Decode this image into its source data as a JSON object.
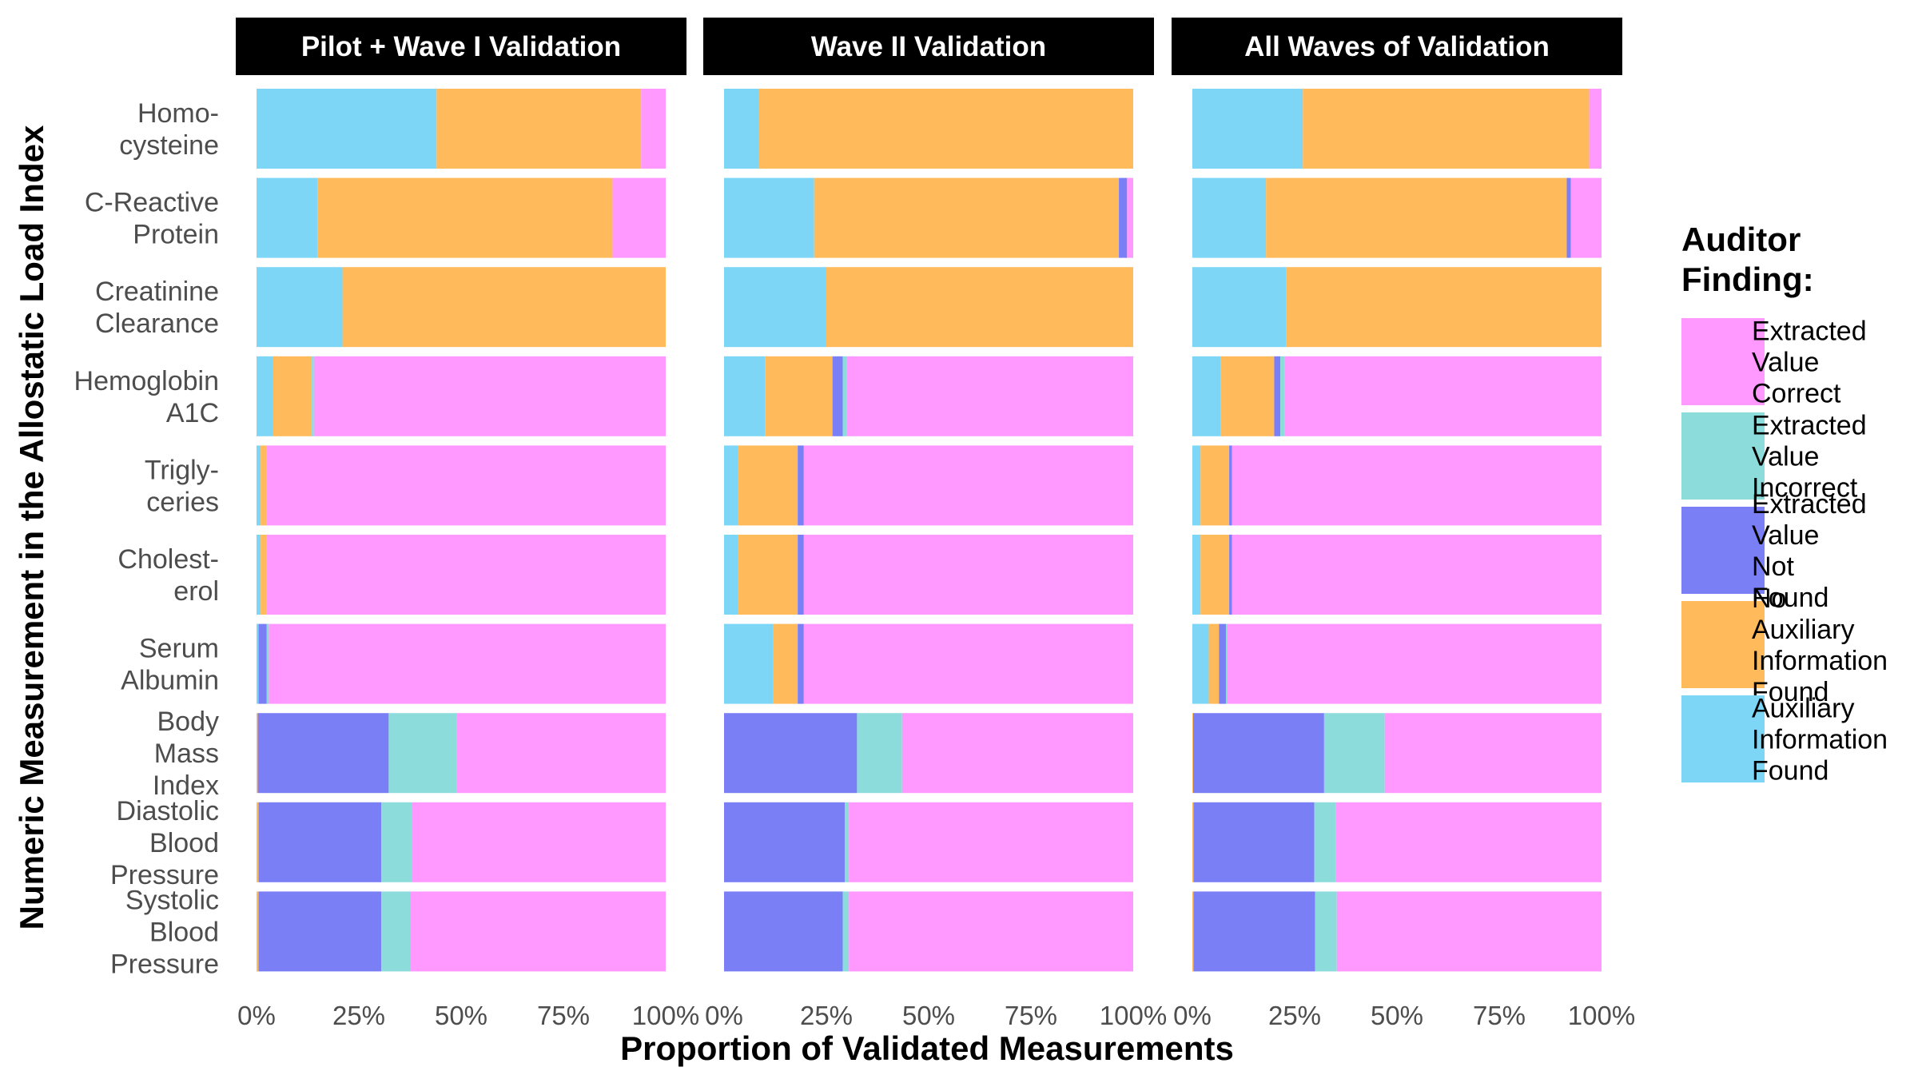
{
  "chart_data": {
    "type": "bar",
    "stacked": true,
    "orientation": "horizontal",
    "xlabel": "Proportion of Validated Measurements",
    "ylabel": "Numeric Measurement in the Allostatic Load Index",
    "xlim": [
      0,
      1
    ],
    "x_ticks": [
      "0%",
      "25%",
      "50%",
      "75%",
      "100%"
    ],
    "legend": {
      "title": [
        "Auditor",
        "Finding:"
      ],
      "position": "right",
      "entries": [
        {
          "key": "correct",
          "label": [
            "Extracted",
            "Value",
            "Correct"
          ],
          "color": "#FF99FF"
        },
        {
          "key": "incorrect",
          "label": [
            "Extracted",
            "Value",
            "Incorrect"
          ],
          "color": "#8DDCDC"
        },
        {
          "key": "not_found",
          "label": [
            "Extracted",
            "Value",
            "Not",
            "Found"
          ],
          "color": "#7B7FF6"
        },
        {
          "key": "no_aux",
          "label": [
            "No",
            "Auxiliary",
            "Information",
            "Found"
          ],
          "color": "#FFBA5C"
        },
        {
          "key": "aux",
          "label": [
            "Auxiliary",
            "Information",
            "Found"
          ],
          "color": "#7ED6F7"
        }
      ]
    },
    "stack_order": [
      "aux",
      "no_aux",
      "not_found",
      "incorrect",
      "correct"
    ],
    "categories": [
      {
        "key": "homocysteine",
        "label": [
          "Homo-",
          "cysteine"
        ]
      },
      {
        "key": "crp",
        "label": [
          "C-Reactive",
          "Protein"
        ]
      },
      {
        "key": "creatinine",
        "label": [
          "Creatinine",
          "Clearance"
        ]
      },
      {
        "key": "hba1c",
        "label": [
          "Hemoglobin",
          "A1C"
        ]
      },
      {
        "key": "triglyceries",
        "label": [
          "Trigly-",
          "ceries"
        ]
      },
      {
        "key": "cholesterol",
        "label": [
          "Cholest-",
          "erol"
        ]
      },
      {
        "key": "albumin",
        "label": [
          "Serum",
          "Albumin"
        ]
      },
      {
        "key": "bmi",
        "label": [
          "Body",
          "Mass",
          "Index"
        ]
      },
      {
        "key": "dbp",
        "label": [
          "Diastolic",
          "Blood",
          "Pressure"
        ]
      },
      {
        "key": "sbp",
        "label": [
          "Systolic",
          "Blood",
          "Pressure"
        ]
      }
    ],
    "panels": [
      {
        "title": "Pilot + Wave I Validation",
        "values": {
          "homocysteine": {
            "aux": 0.44,
            "no_aux": 0.5,
            "not_found": 0,
            "incorrect": 0,
            "correct": 0.06
          },
          "crp": {
            "aux": 0.15,
            "no_aux": 0.72,
            "not_found": 0,
            "incorrect": 0,
            "correct": 0.13
          },
          "creatinine": {
            "aux": 0.21,
            "no_aux": 0.79,
            "not_found": 0,
            "incorrect": 0,
            "correct": 0
          },
          "hba1c": {
            "aux": 0.04,
            "no_aux": 0.095,
            "not_found": 0,
            "incorrect": 0.005,
            "correct": 0.86
          },
          "triglyceries": {
            "aux": 0.01,
            "no_aux": 0.015,
            "not_found": 0,
            "incorrect": 0,
            "correct": 0.975
          },
          "cholesterol": {
            "aux": 0.01,
            "no_aux": 0.015,
            "not_found": 0,
            "incorrect": 0,
            "correct": 0.975
          },
          "albumin": {
            "aux": 0.005,
            "no_aux": 0,
            "not_found": 0.02,
            "incorrect": 0.005,
            "correct": 0.97
          },
          "bmi": {
            "aux": 0,
            "no_aux": 0.003,
            "not_found": 0.32,
            "incorrect": 0.167,
            "correct": 0.51
          },
          "dbp": {
            "aux": 0,
            "no_aux": 0.005,
            "not_found": 0.3,
            "incorrect": 0.075,
            "correct": 0.62
          },
          "sbp": {
            "aux": 0,
            "no_aux": 0.005,
            "not_found": 0.3,
            "incorrect": 0.07,
            "correct": 0.625
          }
        }
      },
      {
        "title": "Wave II Validation",
        "values": {
          "homocysteine": {
            "aux": 0.085,
            "no_aux": 0.915,
            "not_found": 0,
            "incorrect": 0,
            "correct": 0
          },
          "crp": {
            "aux": 0.22,
            "no_aux": 0.745,
            "not_found": 0.02,
            "incorrect": 0,
            "correct": 0.015
          },
          "creatinine": {
            "aux": 0.25,
            "no_aux": 0.75,
            "not_found": 0,
            "incorrect": 0,
            "correct": 0
          },
          "hba1c": {
            "aux": 0.1,
            "no_aux": 0.165,
            "not_found": 0.025,
            "incorrect": 0.01,
            "correct": 0.7
          },
          "triglyceries": {
            "aux": 0.035,
            "no_aux": 0.145,
            "not_found": 0.015,
            "incorrect": 0,
            "correct": 0.805
          },
          "cholesterol": {
            "aux": 0.035,
            "no_aux": 0.145,
            "not_found": 0.015,
            "incorrect": 0,
            "correct": 0.805
          },
          "albumin": {
            "aux": 0.12,
            "no_aux": 0.06,
            "not_found": 0.015,
            "incorrect": 0,
            "correct": 0.805
          },
          "bmi": {
            "aux": 0,
            "no_aux": 0,
            "not_found": 0.325,
            "incorrect": 0.11,
            "correct": 0.565
          },
          "dbp": {
            "aux": 0,
            "no_aux": 0,
            "not_found": 0.295,
            "incorrect": 0.01,
            "correct": 0.695
          },
          "sbp": {
            "aux": 0,
            "no_aux": 0,
            "not_found": 0.29,
            "incorrect": 0.015,
            "correct": 0.695
          }
        }
      },
      {
        "title": "All Waves of Validation",
        "values": {
          "homocysteine": {
            "aux": 0.27,
            "no_aux": 0.7,
            "not_found": 0,
            "incorrect": 0,
            "correct": 0.03
          },
          "crp": {
            "aux": 0.18,
            "no_aux": 0.735,
            "not_found": 0.01,
            "incorrect": 0,
            "correct": 0.075
          },
          "creatinine": {
            "aux": 0.23,
            "no_aux": 0.77,
            "not_found": 0,
            "incorrect": 0,
            "correct": 0
          },
          "hba1c": {
            "aux": 0.07,
            "no_aux": 0.13,
            "not_found": 0.015,
            "incorrect": 0.01,
            "correct": 0.775
          },
          "triglyceries": {
            "aux": 0.02,
            "no_aux": 0.07,
            "not_found": 0.007,
            "incorrect": 0,
            "correct": 0.903
          },
          "cholesterol": {
            "aux": 0.02,
            "no_aux": 0.07,
            "not_found": 0.007,
            "incorrect": 0,
            "correct": 0.903
          },
          "albumin": {
            "aux": 0.04,
            "no_aux": 0.025,
            "not_found": 0.017,
            "incorrect": 0.003,
            "correct": 0.915
          },
          "bmi": {
            "aux": 0,
            "no_aux": 0.002,
            "not_found": 0.32,
            "incorrect": 0.148,
            "correct": 0.53
          },
          "dbp": {
            "aux": 0,
            "no_aux": 0.003,
            "not_found": 0.295,
            "incorrect": 0.052,
            "correct": 0.65
          },
          "sbp": {
            "aux": 0,
            "no_aux": 0.003,
            "not_found": 0.297,
            "incorrect": 0.053,
            "correct": 0.647
          }
        }
      }
    ]
  }
}
